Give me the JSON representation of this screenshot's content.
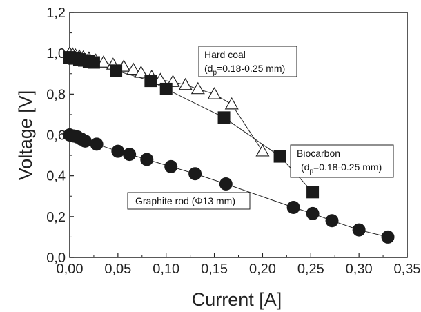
{
  "chart_data": {
    "type": "scatter",
    "xlabel": "Current [A]",
    "ylabel": "Voltage [V]",
    "xlim": [
      0,
      0.35
    ],
    "ylim": [
      0,
      1.2
    ],
    "x_ticks": [
      "0,00",
      "0,05",
      "0,10",
      "0,15",
      "0,20",
      "0,25",
      "0,30",
      "0,35"
    ],
    "y_ticks": [
      "0,0",
      "0,2",
      "0,4",
      "0,6",
      "0,8",
      "1,0",
      "1,2"
    ],
    "grid": false,
    "series": [
      {
        "marker": "triangle-open",
        "line": true,
        "x": [
          0.0,
          0.003,
          0.006,
          0.01,
          0.014,
          0.02,
          0.027,
          0.035,
          0.045,
          0.056,
          0.066,
          0.074,
          0.085,
          0.094,
          0.107,
          0.12,
          0.133,
          0.15,
          0.168,
          0.2
        ],
        "y": [
          1.0,
          0.995,
          0.99,
          0.985,
          0.98,
          0.975,
          0.965,
          0.955,
          0.945,
          0.935,
          0.92,
          0.905,
          0.885,
          0.87,
          0.86,
          0.845,
          0.825,
          0.8,
          0.75,
          0.52
        ]
      },
      {
        "marker": "square-filled",
        "line": true,
        "x": [
          0.0,
          0.005,
          0.01,
          0.015,
          0.02,
          0.025,
          0.048,
          0.084,
          0.1,
          0.16,
          0.218,
          0.252
        ],
        "y": [
          0.98,
          0.975,
          0.97,
          0.965,
          0.96,
          0.955,
          0.915,
          0.865,
          0.825,
          0.685,
          0.495,
          0.32
        ]
      },
      {
        "marker": "circle-filled",
        "line": true,
        "x": [
          0.0,
          0.004,
          0.008,
          0.012,
          0.016,
          0.028,
          0.05,
          0.062,
          0.08,
          0.105,
          0.13,
          0.162,
          0.232,
          0.252,
          0.272,
          0.3,
          0.33
        ],
        "y": [
          0.6,
          0.595,
          0.59,
          0.58,
          0.57,
          0.555,
          0.52,
          0.505,
          0.48,
          0.445,
          0.41,
          0.36,
          0.245,
          0.215,
          0.18,
          0.135,
          0.1
        ]
      }
    ],
    "annotations": [
      {
        "line1": "Hard coal",
        "line2_pre": "(d",
        "line2_sub": "p",
        "line2_post": "=0.18-0.25 mm)"
      },
      {
        "line1": "Biocarbon",
        "line2_pre": "(d",
        "line2_sub": "p",
        "line2_post": "=0.18-0.25 mm)"
      },
      {
        "line1": "Graphite rod (Φ13 mm)"
      }
    ]
  }
}
